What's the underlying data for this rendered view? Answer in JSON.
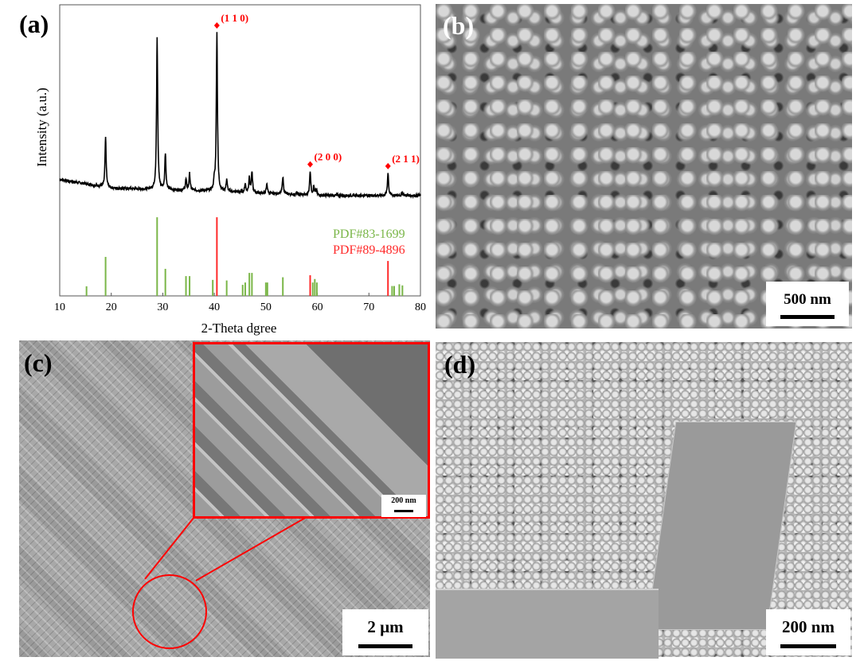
{
  "panels": {
    "a": {
      "label": "(a)"
    },
    "b": {
      "label": "(b)",
      "scale_bar": "500 nm"
    },
    "c": {
      "label": "(c)",
      "scale_bar": "2 µm",
      "inset_scale_bar": "200 nm"
    },
    "d": {
      "label": "(d)",
      "scale_bar": "200 nm"
    }
  },
  "chart_data": {
    "type": "line",
    "title": "",
    "xlabel": "2-Theta dgree",
    "ylabel": "Intensity (a.u.)",
    "xlim": [
      10,
      80
    ],
    "xticks": [
      10,
      20,
      30,
      40,
      50,
      60,
      70,
      80
    ],
    "ylim": [
      0,
      100
    ],
    "y_ticks_shown": false,
    "grid": false,
    "measured_pattern": {
      "color": "#000000",
      "baseline": [
        [
          10,
          40
        ],
        [
          20,
          37
        ],
        [
          40,
          36
        ],
        [
          60,
          34.5
        ],
        [
          80,
          34.5
        ]
      ],
      "peaks": [
        [
          15.2,
          38.5
        ],
        [
          18.9,
          54.5
        ],
        [
          28.9,
          88.8
        ],
        [
          30.5,
          49
        ],
        [
          34.5,
          40
        ],
        [
          35.2,
          42
        ],
        [
          40.0,
          39
        ],
        [
          40.5,
          90.7
        ],
        [
          42.4,
          40
        ],
        [
          46.0,
          38.5
        ],
        [
          46.8,
          40.7
        ],
        [
          47.3,
          42.5
        ],
        [
          50.2,
          38.5
        ],
        [
          53.3,
          41
        ],
        [
          56.0,
          35.5
        ],
        [
          58.6,
          43
        ],
        [
          59.3,
          37.5
        ],
        [
          59.8,
          36.5
        ],
        [
          73.7,
          42.4
        ],
        [
          76.5,
          35.5
        ]
      ]
    },
    "annotations": [
      {
        "text": "(1 1 0)",
        "x": 40.5,
        "color": "#ff0000",
        "marker": "diamond"
      },
      {
        "text": "(2 0 0)",
        "x": 58.6,
        "color": "#ff0000",
        "marker": "diamond"
      },
      {
        "text": "(2 1 1)",
        "x": 73.7,
        "color": "#ff0000",
        "marker": "diamond"
      }
    ],
    "reference_series": [
      {
        "name": "PDF#83-1699",
        "color": "#7ab648",
        "sticks": [
          [
            15.2,
            3.3
          ],
          [
            18.9,
            13.4
          ],
          [
            28.9,
            27
          ],
          [
            30.5,
            9.3
          ],
          [
            34.5,
            6.8
          ],
          [
            35.2,
            6.8
          ],
          [
            39.7,
            5.5
          ],
          [
            42.4,
            5.3
          ],
          [
            45.5,
            3.8
          ],
          [
            46.0,
            4.6
          ],
          [
            46.8,
            7.9
          ],
          [
            47.3,
            7.9
          ],
          [
            50.0,
            4.6
          ],
          [
            50.3,
            4.6
          ],
          [
            53.3,
            6.4
          ],
          [
            59.1,
            4.6
          ],
          [
            59.5,
            5.8
          ],
          [
            59.9,
            4.6
          ],
          [
            74.5,
            3.4
          ],
          [
            74.9,
            3.4
          ],
          [
            75.9,
            4.0
          ],
          [
            76.5,
            3.6
          ]
        ]
      },
      {
        "name": "PDF#89-4896",
        "color": "#ff2a2a",
        "sticks": [
          [
            40.5,
            27
          ],
          [
            58.6,
            7.1
          ],
          [
            73.7,
            12
          ]
        ]
      }
    ],
    "legend_position": "right"
  }
}
